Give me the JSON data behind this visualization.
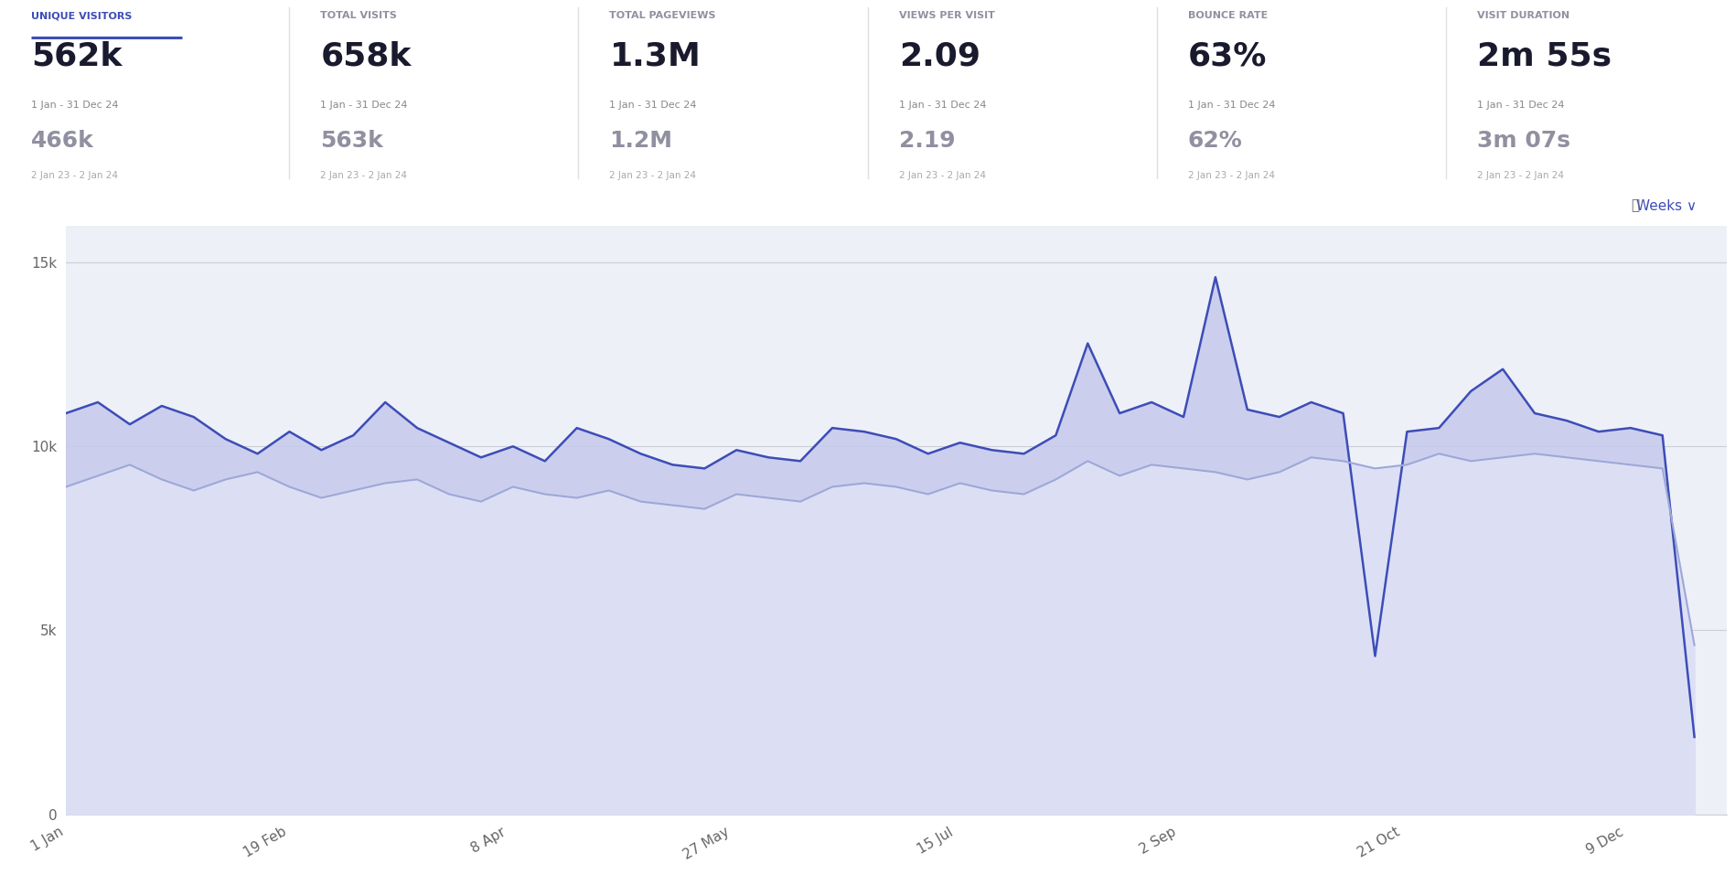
{
  "background_color": "#f8f9ff",
  "chart_bg": "#eef0f8",
  "header_bg": "#ffffff",
  "metrics": [
    {
      "label": "UNIQUE VISITORS",
      "value": "562k",
      "date": "1 Jan - 31 Dec 24",
      "prev_value": "466k",
      "prev_date": "2 Jan 23 - 2 Jan 24",
      "active": true
    },
    {
      "label": "TOTAL VISITS",
      "value": "658k",
      "date": "1 Jan - 31 Dec 24",
      "prev_value": "563k",
      "prev_date": "2 Jan 23 - 2 Jan 24",
      "active": false
    },
    {
      "label": "TOTAL PAGEVIEWS",
      "value": "1.3M",
      "date": "1 Jan - 31 Dec 24",
      "prev_value": "1.2M",
      "prev_date": "2 Jan 23 - 2 Jan 24",
      "active": false
    },
    {
      "label": "VIEWS PER VISIT",
      "value": "2.09",
      "date": "1 Jan - 31 Dec 24",
      "prev_value": "2.19",
      "prev_date": "2 Jan 23 - 2 Jan 24",
      "active": false
    },
    {
      "label": "BOUNCE RATE",
      "value": "63%",
      "date": "1 Jan - 31 Dec 24",
      "prev_value": "62%",
      "prev_date": "2 Jan 23 - 2 Jan 24",
      "active": false
    },
    {
      "label": "VISIT DURATION",
      "value": "2m 55s",
      "date": "1 Jan - 31 Dec 24",
      "prev_value": "3m 07s",
      "prev_date": "2 Jan 23 - 2 Jan 24",
      "active": false
    }
  ],
  "line_2024_color": "#3d4db7",
  "line_2023_color": "#9da8d8",
  "fill_2024_color": "#c5caec",
  "fill_2023_color": "#dde0f5",
  "x_ticks": [
    "1 Jan",
    "19 Feb",
    "8 Apr",
    "27 May",
    "15 Jul",
    "2 Sep",
    "21 Oct",
    "9 Dec"
  ],
  "x_positions": [
    1,
    50,
    98,
    147,
    196,
    245,
    294,
    343
  ],
  "y_ticks": [
    0,
    5000,
    10000,
    15000
  ],
  "y_tick_labels": [
    "0",
    "5k",
    "10k",
    "15k"
  ],
  "ylim": [
    0,
    16000
  ],
  "grid_color": "#ccced8",
  "weeks_x": [
    1,
    8,
    15,
    22,
    29,
    36,
    43,
    50,
    57,
    64,
    71,
    78,
    85,
    92,
    99,
    106,
    113,
    120,
    127,
    134,
    141,
    148,
    155,
    162,
    169,
    176,
    183,
    190,
    197,
    204,
    211,
    218,
    225,
    232,
    239,
    246,
    253,
    260,
    267,
    274,
    281,
    288,
    295,
    302,
    309,
    316,
    323,
    330,
    337,
    344,
    351,
    358
  ],
  "values_2024": [
    10900,
    11200,
    10600,
    11100,
    10800,
    10200,
    9800,
    10400,
    9900,
    10300,
    11200,
    10500,
    10100,
    9700,
    10000,
    9600,
    10500,
    10200,
    9800,
    9500,
    9400,
    9900,
    9700,
    9600,
    10500,
    10400,
    10200,
    9800,
    10100,
    9900,
    9800,
    10300,
    12800,
    10900,
    11200,
    10800,
    14600,
    11000,
    10800,
    11200,
    10900,
    4300,
    10400,
    10500,
    11500,
    12100,
    10900,
    10700,
    10400,
    10500,
    10300,
    2100
  ],
  "values_2023": [
    8900,
    9200,
    9500,
    9100,
    8800,
    9100,
    9300,
    8900,
    8600,
    8800,
    9000,
    9100,
    8700,
    8500,
    8900,
    8700,
    8600,
    8800,
    8500,
    8400,
    8300,
    8700,
    8600,
    8500,
    8900,
    9000,
    8900,
    8700,
    9000,
    8800,
    8700,
    9100,
    9600,
    9200,
    9500,
    9400,
    9300,
    9100,
    9300,
    9700,
    9600,
    9400,
    9500,
    9800,
    9600,
    9700,
    9800,
    9700,
    9600,
    9500,
    9400,
    4600
  ],
  "divider_color": "#e0e0e0",
  "label_active_color": "#3d4db7",
  "label_inactive_color": "#9090a0",
  "value_color": "#1a1a2e",
  "date_color": "#888888",
  "prev_value_color": "#9090a0",
  "prev_date_color": "#aaaaaa"
}
